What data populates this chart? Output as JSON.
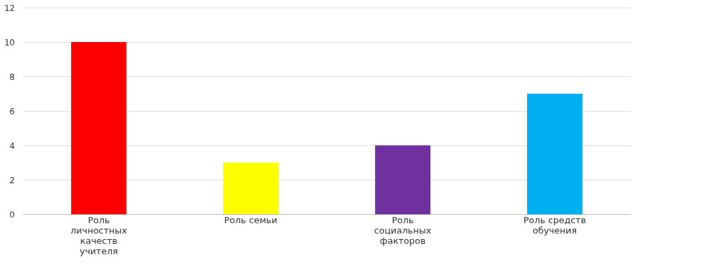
{
  "chart_data": {
    "type": "bar",
    "categories": [
      "Роль личностных качеств учителя",
      "Роль семьи",
      "Роль социальных факторов",
      "Роль средств обучения"
    ],
    "values": [
      10,
      3,
      4,
      7
    ],
    "colors": [
      "#ff0000",
      "#ffff00",
      "#7030a0",
      "#00b0f0"
    ],
    "ylim": [
      0,
      12
    ],
    "yticks": [
      0,
      2,
      4,
      6,
      8,
      10,
      12
    ],
    "grid": "y"
  }
}
